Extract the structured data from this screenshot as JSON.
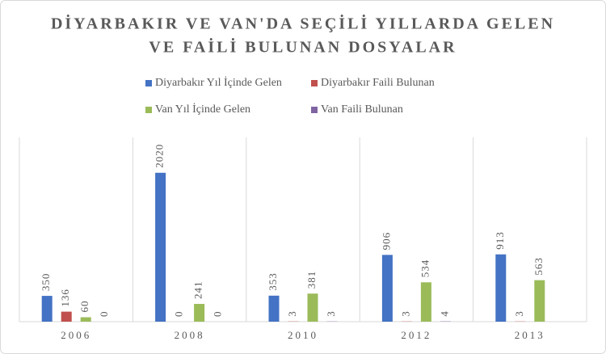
{
  "chart_data": {
    "type": "bar",
    "title": [
      "DİYARBAKIR VE VAN'DA SEÇİLİ YILLARDA GELEN",
      "VE FAİLİ BULUNAN DOSYALAR"
    ],
    "categories": [
      "2006",
      "2008",
      "2010",
      "2012",
      "2013"
    ],
    "series": [
      {
        "name": "Diyarbakır Yıl İçinde Gelen",
        "color": "#4472c4",
        "values": [
          350,
          2020,
          353,
          906,
          913
        ]
      },
      {
        "name": "Diyarbakır Faili Bulunan",
        "color": "#c0504d",
        "values": [
          136,
          0,
          3,
          3,
          3
        ]
      },
      {
        "name": "Van Yıl İçinde Gelen",
        "color": "#9bbb59",
        "values": [
          60,
          241,
          381,
          534,
          563
        ]
      },
      {
        "name": "Van Faili Bulunan",
        "color": "#8064a2",
        "values": [
          0,
          0,
          3,
          4,
          null
        ]
      }
    ],
    "ylim": [
      0,
      2500
    ]
  }
}
